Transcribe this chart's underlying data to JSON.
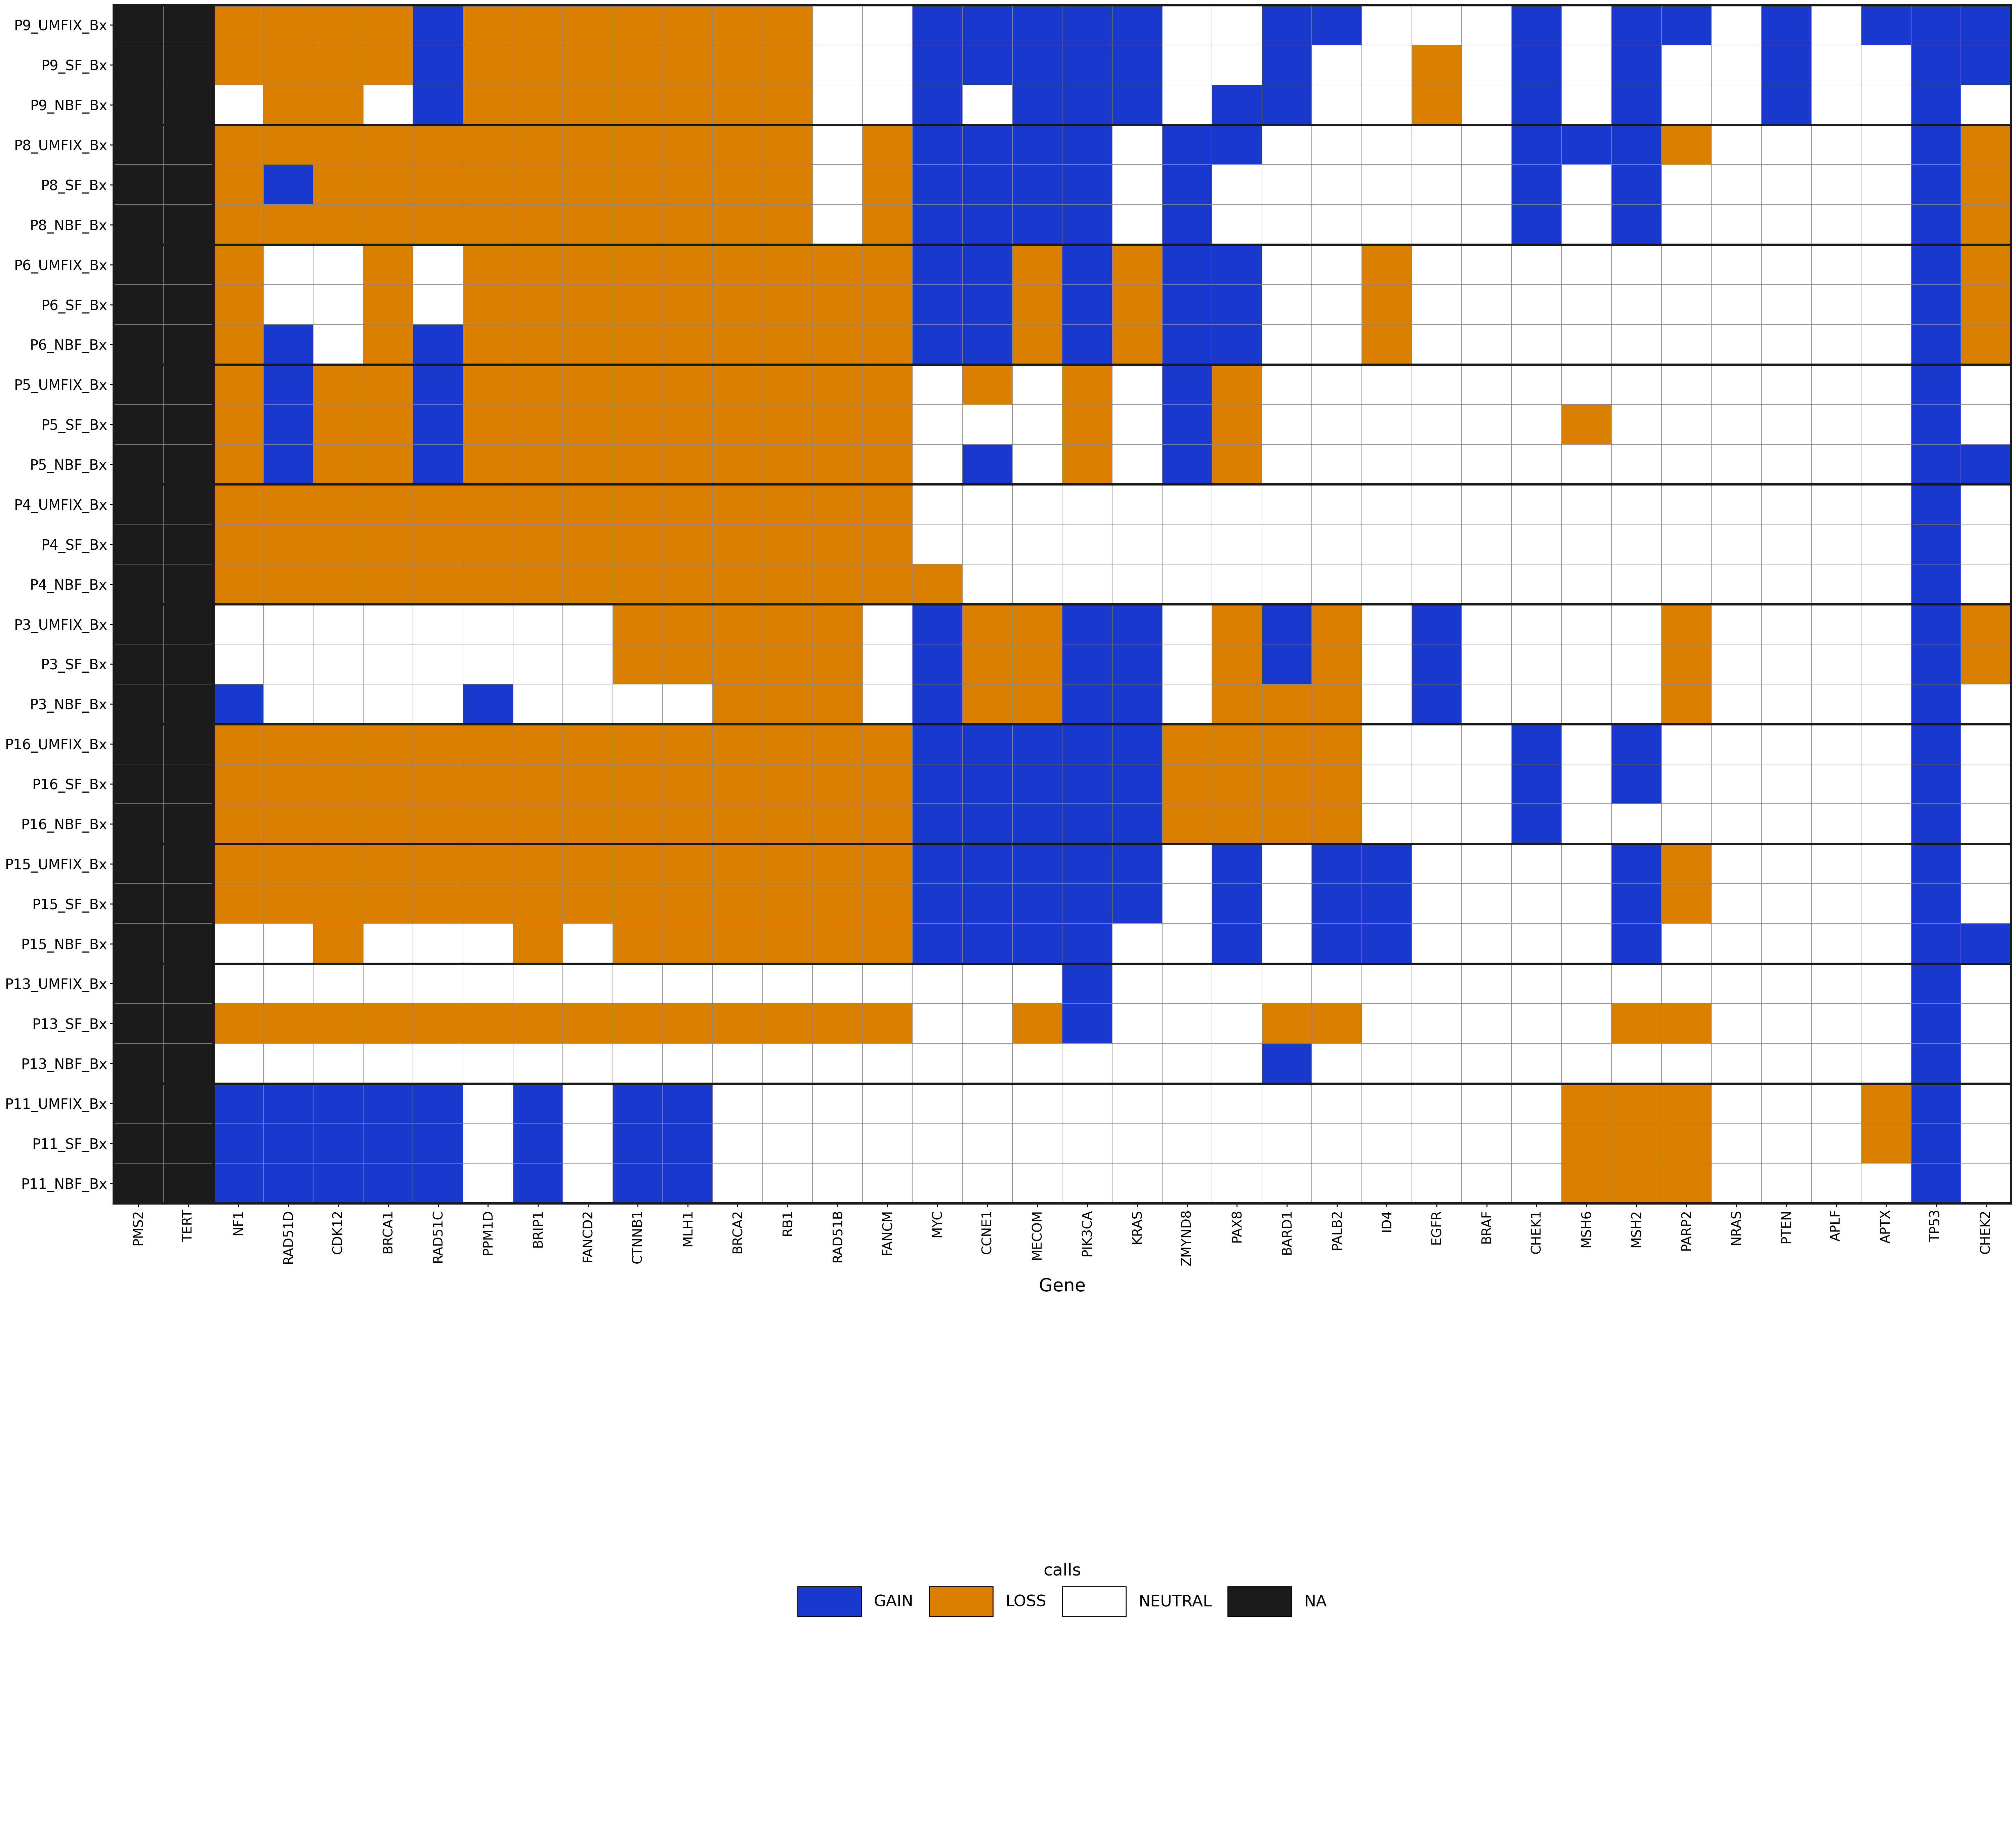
{
  "samples": [
    "P9_UMFIX_Bx",
    "P9_SF_Bx",
    "P9_NBF_Bx",
    "P8_UMFIX_Bx",
    "P8_SF_Bx",
    "P8_NBF_Bx",
    "P6_UMFIX_Bx",
    "P6_SF_Bx",
    "P6_NBF_Bx",
    "P5_UMFIX_Bx",
    "P5_SF_Bx",
    "P5_NBF_Bx",
    "P4_UMFIX_Bx",
    "P4_SF_Bx",
    "P4_NBF_Bx",
    "P3_UMFIX_Bx",
    "P3_SF_Bx",
    "P3_NBF_Bx",
    "P16_UMFIX_Bx",
    "P16_SF_Bx",
    "P16_NBF_Bx",
    "P15_UMFIX_Bx",
    "P15_SF_Bx",
    "P15_NBF_Bx",
    "P13_UMFIX_Bx",
    "P13_SF_Bx",
    "P13_NBF_Bx",
    "P11_UMFIX_Bx",
    "P11_SF_Bx",
    "P11_NBF_Bx"
  ],
  "genes_display": [
    "PMS2",
    "TERT",
    "NF1",
    "RAD51D",
    "CDK12",
    "BRCA1",
    "RAD51C",
    "PPM1D",
    "BRIP1",
    "FANCD2",
    "CTNNB1",
    "MLH1",
    "BRCA2",
    "RB1",
    "RAD51B",
    "FANCM",
    "MYC",
    "CCNE1",
    "MECOM",
    "PIK3CA",
    "KRAS",
    "ZMYND8",
    "PAX8",
    "BARD1",
    "PALB2",
    "ID4",
    "EGFR",
    "BRAF",
    "CHEK1",
    "MSH6",
    "MSH2",
    "PARP2",
    "NRAS",
    "PTEN",
    "APLF",
    "APTX",
    "TP53",
    "CHEK2"
  ],
  "matrix": [
    [
      -1,
      -1,
      2,
      2,
      2,
      2,
      1,
      2,
      2,
      2,
      2,
      2,
      2,
      2,
      0,
      0,
      1,
      1,
      1,
      1,
      1,
      0,
      0,
      1,
      1,
      0,
      0,
      0,
      1,
      0,
      1,
      1,
      0,
      1,
      0,
      1,
      1,
      1
    ],
    [
      -1,
      -1,
      2,
      2,
      2,
      2,
      1,
      2,
      2,
      2,
      2,
      2,
      2,
      2,
      0,
      0,
      1,
      1,
      1,
      1,
      1,
      0,
      0,
      1,
      0,
      0,
      2,
      0,
      1,
      0,
      1,
      0,
      0,
      1,
      0,
      0,
      1,
      1
    ],
    [
      -1,
      -1,
      0,
      2,
      2,
      0,
      1,
      2,
      2,
      2,
      2,
      2,
      2,
      2,
      0,
      0,
      1,
      0,
      1,
      1,
      1,
      0,
      1,
      1,
      0,
      0,
      2,
      0,
      1,
      0,
      1,
      0,
      0,
      1,
      0,
      0,
      1,
      0
    ],
    [
      -1,
      -1,
      2,
      2,
      2,
      2,
      2,
      2,
      2,
      2,
      2,
      2,
      2,
      2,
      0,
      2,
      1,
      1,
      1,
      1,
      0,
      1,
      1,
      0,
      0,
      0,
      0,
      0,
      1,
      1,
      1,
      2,
      0,
      0,
      0,
      0,
      1,
      2
    ],
    [
      -1,
      -1,
      2,
      1,
      2,
      2,
      2,
      2,
      2,
      2,
      2,
      2,
      2,
      2,
      0,
      2,
      1,
      1,
      1,
      1,
      0,
      1,
      0,
      0,
      0,
      0,
      0,
      0,
      1,
      0,
      1,
      0,
      0,
      0,
      0,
      0,
      1,
      2
    ],
    [
      -1,
      -1,
      2,
      2,
      2,
      2,
      2,
      2,
      2,
      2,
      2,
      2,
      2,
      2,
      0,
      2,
      1,
      1,
      1,
      1,
      0,
      1,
      0,
      0,
      0,
      0,
      0,
      0,
      1,
      0,
      1,
      0,
      0,
      0,
      0,
      0,
      1,
      2
    ],
    [
      -1,
      -1,
      2,
      0,
      0,
      2,
      0,
      2,
      2,
      2,
      2,
      2,
      2,
      2,
      2,
      2,
      1,
      1,
      2,
      1,
      2,
      1,
      1,
      0,
      0,
      2,
      0,
      0,
      0,
      0,
      0,
      0,
      0,
      0,
      0,
      0,
      1,
      2
    ],
    [
      -1,
      -1,
      2,
      0,
      0,
      2,
      0,
      2,
      2,
      2,
      2,
      2,
      2,
      2,
      2,
      2,
      1,
      1,
      2,
      1,
      2,
      1,
      1,
      0,
      0,
      2,
      0,
      0,
      0,
      0,
      0,
      0,
      0,
      0,
      0,
      0,
      1,
      2
    ],
    [
      -1,
      -1,
      2,
      1,
      0,
      2,
      1,
      2,
      2,
      2,
      2,
      2,
      2,
      2,
      2,
      2,
      1,
      1,
      2,
      1,
      2,
      1,
      1,
      0,
      0,
      2,
      0,
      0,
      0,
      0,
      0,
      0,
      0,
      0,
      0,
      0,
      1,
      2
    ],
    [
      -1,
      -1,
      2,
      1,
      2,
      2,
      1,
      2,
      2,
      2,
      2,
      2,
      2,
      2,
      2,
      2,
      0,
      2,
      0,
      2,
      0,
      1,
      2,
      0,
      0,
      0,
      0,
      0,
      0,
      0,
      0,
      0,
      0,
      0,
      0,
      0,
      1,
      0
    ],
    [
      -1,
      -1,
      2,
      1,
      2,
      2,
      1,
      2,
      2,
      2,
      2,
      2,
      2,
      2,
      2,
      2,
      0,
      0,
      0,
      2,
      0,
      1,
      2,
      0,
      0,
      0,
      0,
      0,
      0,
      2,
      0,
      0,
      0,
      0,
      0,
      0,
      1,
      0
    ],
    [
      -1,
      -1,
      2,
      1,
      2,
      2,
      1,
      2,
      2,
      2,
      2,
      2,
      2,
      2,
      2,
      2,
      0,
      1,
      0,
      2,
      0,
      1,
      2,
      0,
      0,
      0,
      0,
      0,
      0,
      0,
      0,
      0,
      0,
      0,
      0,
      0,
      1,
      1
    ],
    [
      -1,
      -1,
      2,
      2,
      2,
      2,
      2,
      2,
      2,
      2,
      2,
      2,
      2,
      2,
      2,
      2,
      0,
      0,
      0,
      0,
      0,
      0,
      0,
      0,
      0,
      0,
      0,
      0,
      0,
      0,
      0,
      0,
      0,
      0,
      0,
      0,
      1,
      0
    ],
    [
      -1,
      -1,
      2,
      2,
      2,
      2,
      2,
      2,
      2,
      2,
      2,
      2,
      2,
      2,
      2,
      2,
      0,
      0,
      0,
      0,
      0,
      0,
      0,
      0,
      0,
      0,
      0,
      0,
      0,
      0,
      0,
      0,
      0,
      0,
      0,
      0,
      1,
      0
    ],
    [
      -1,
      -1,
      2,
      2,
      2,
      2,
      2,
      2,
      2,
      2,
      2,
      2,
      2,
      2,
      2,
      2,
      2,
      0,
      0,
      0,
      0,
      0,
      0,
      0,
      0,
      0,
      0,
      0,
      0,
      0,
      0,
      0,
      0,
      0,
      0,
      0,
      1,
      0
    ],
    [
      -1,
      -1,
      0,
      0,
      0,
      0,
      0,
      0,
      0,
      0,
      2,
      2,
      2,
      2,
      2,
      0,
      1,
      2,
      2,
      1,
      1,
      0,
      2,
      1,
      2,
      0,
      1,
      0,
      0,
      0,
      0,
      2,
      0,
      0,
      0,
      0,
      1,
      2
    ],
    [
      -1,
      -1,
      0,
      0,
      0,
      0,
      0,
      0,
      0,
      0,
      2,
      2,
      2,
      2,
      2,
      0,
      1,
      2,
      2,
      1,
      1,
      0,
      2,
      1,
      2,
      0,
      1,
      0,
      0,
      0,
      0,
      2,
      0,
      0,
      0,
      0,
      1,
      2
    ],
    [
      -1,
      -1,
      1,
      0,
      0,
      0,
      0,
      1,
      0,
      0,
      0,
      0,
      2,
      2,
      2,
      0,
      1,
      2,
      2,
      1,
      1,
      0,
      2,
      2,
      2,
      0,
      1,
      0,
      0,
      0,
      0,
      2,
      0,
      0,
      0,
      0,
      1,
      0
    ],
    [
      -1,
      -1,
      2,
      2,
      2,
      2,
      2,
      2,
      2,
      2,
      2,
      2,
      2,
      2,
      2,
      2,
      1,
      1,
      1,
      1,
      1,
      2,
      2,
      2,
      2,
      0,
      0,
      0,
      1,
      0,
      1,
      0,
      0,
      0,
      0,
      0,
      1,
      0
    ],
    [
      -1,
      -1,
      2,
      2,
      2,
      2,
      2,
      2,
      2,
      2,
      2,
      2,
      2,
      2,
      2,
      2,
      1,
      1,
      1,
      1,
      1,
      2,
      2,
      2,
      2,
      0,
      0,
      0,
      1,
      0,
      1,
      0,
      0,
      0,
      0,
      0,
      1,
      0
    ],
    [
      -1,
      -1,
      2,
      2,
      2,
      2,
      2,
      2,
      2,
      2,
      2,
      2,
      2,
      2,
      2,
      2,
      1,
      1,
      1,
      1,
      1,
      2,
      2,
      2,
      2,
      0,
      0,
      0,
      1,
      0,
      0,
      0,
      0,
      0,
      0,
      0,
      1,
      0
    ],
    [
      -1,
      -1,
      2,
      2,
      2,
      2,
      2,
      2,
      2,
      2,
      2,
      2,
      2,
      2,
      2,
      2,
      1,
      1,
      1,
      1,
      1,
      0,
      1,
      0,
      1,
      1,
      0,
      0,
      0,
      0,
      1,
      2,
      0,
      0,
      0,
      0,
      1,
      0
    ],
    [
      -1,
      -1,
      2,
      2,
      2,
      2,
      2,
      2,
      2,
      2,
      2,
      2,
      2,
      2,
      2,
      2,
      1,
      1,
      1,
      1,
      1,
      0,
      1,
      0,
      1,
      1,
      0,
      0,
      0,
      0,
      1,
      2,
      0,
      0,
      0,
      0,
      1,
      0
    ],
    [
      -1,
      -1,
      0,
      0,
      2,
      0,
      0,
      0,
      2,
      0,
      2,
      2,
      2,
      2,
      2,
      2,
      1,
      1,
      1,
      1,
      0,
      0,
      1,
      0,
      1,
      1,
      0,
      0,
      0,
      0,
      1,
      0,
      0,
      0,
      0,
      0,
      1,
      1
    ],
    [
      -1,
      -1,
      0,
      0,
      0,
      0,
      0,
      0,
      0,
      0,
      0,
      0,
      0,
      0,
      0,
      0,
      0,
      0,
      0,
      1,
      0,
      0,
      0,
      0,
      0,
      0,
      0,
      0,
      0,
      0,
      0,
      0,
      0,
      0,
      0,
      0,
      1,
      0
    ],
    [
      -1,
      -1,
      2,
      2,
      2,
      2,
      2,
      2,
      2,
      2,
      2,
      2,
      2,
      2,
      2,
      2,
      0,
      0,
      2,
      1,
      0,
      0,
      0,
      2,
      2,
      0,
      0,
      0,
      0,
      0,
      2,
      2,
      0,
      0,
      0,
      0,
      1,
      0
    ],
    [
      -1,
      -1,
      0,
      0,
      0,
      0,
      0,
      0,
      0,
      0,
      0,
      0,
      0,
      0,
      0,
      0,
      0,
      0,
      0,
      0,
      0,
      0,
      0,
      1,
      0,
      0,
      0,
      0,
      0,
      0,
      0,
      0,
      0,
      0,
      0,
      0,
      1,
      0
    ],
    [
      -1,
      -1,
      1,
      1,
      1,
      1,
      1,
      0,
      1,
      0,
      1,
      1,
      0,
      0,
      0,
      0,
      0,
      0,
      0,
      0,
      0,
      0,
      0,
      0,
      0,
      0,
      0,
      0,
      0,
      2,
      2,
      2,
      0,
      0,
      0,
      2,
      1,
      0
    ],
    [
      -1,
      -1,
      1,
      1,
      1,
      1,
      1,
      0,
      1,
      0,
      1,
      1,
      0,
      0,
      0,
      0,
      0,
      0,
      0,
      0,
      0,
      0,
      0,
      0,
      0,
      0,
      0,
      0,
      0,
      2,
      2,
      2,
      0,
      0,
      0,
      2,
      1,
      0
    ],
    [
      -1,
      -1,
      1,
      1,
      1,
      1,
      1,
      0,
      1,
      0,
      1,
      1,
      0,
      0,
      0,
      0,
      0,
      0,
      0,
      0,
      0,
      0,
      0,
      0,
      0,
      0,
      0,
      0,
      0,
      2,
      2,
      2,
      0,
      0,
      0,
      0,
      1,
      0
    ]
  ],
  "color_na": "#1a1a1a",
  "color_gain": "#1a39cc",
  "color_loss": "#d98000",
  "color_neutral": "#FFFFFF",
  "xlabel": "Gene",
  "legend_title": "calls",
  "background_color": "#FFFFFF",
  "thin_grid_color": "#888888",
  "thick_border_color": "#1a1a1a",
  "group_boundaries": [
    0,
    3,
    6,
    9,
    12,
    15,
    18,
    21,
    24,
    27,
    30
  ]
}
